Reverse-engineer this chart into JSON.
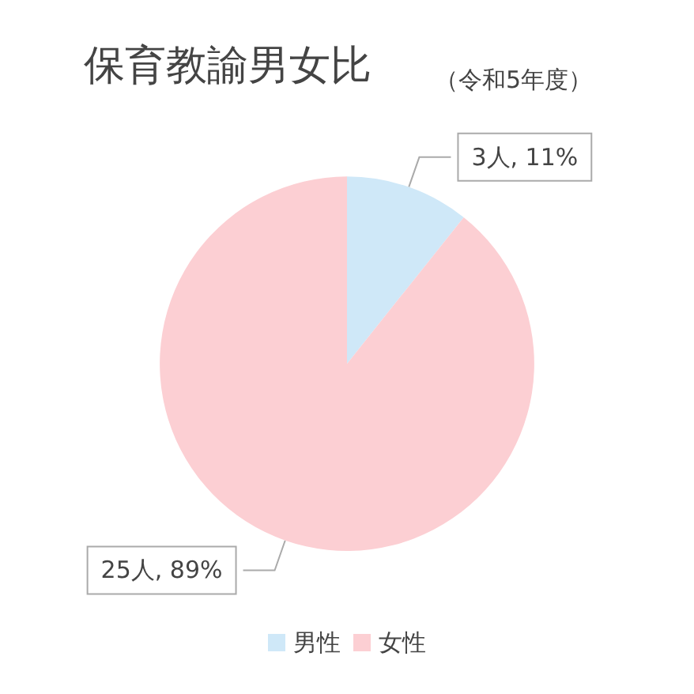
{
  "chart_data": {
    "type": "pie",
    "title": "保育教諭男女比",
    "subtitle": "（令和5年度）",
    "categories": [
      "男性",
      "女性"
    ],
    "values": [
      3,
      25
    ],
    "colors": [
      "#cfe8f8",
      "#fccfd3"
    ],
    "value_labels": [
      "3人, 11%",
      "25人, 89%"
    ],
    "legend": "bottom"
  }
}
